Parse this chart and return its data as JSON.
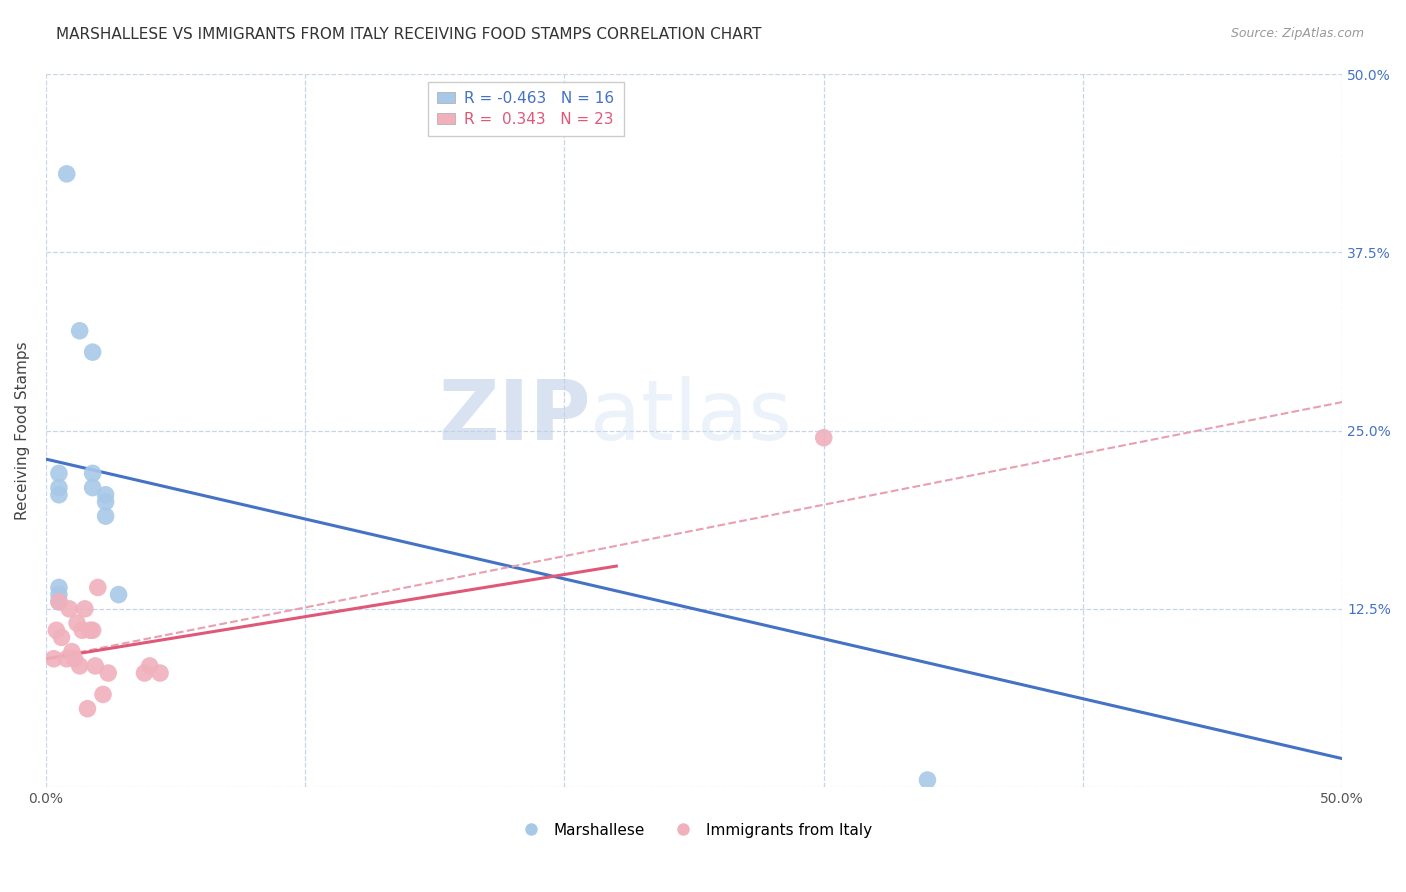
{
  "title": "MARSHALLESE VS IMMIGRANTS FROM ITALY RECEIVING FOOD STAMPS CORRELATION CHART",
  "source": "Source: ZipAtlas.com",
  "ylabel": "Receiving Food Stamps",
  "xlabel": "",
  "xlim": [
    0.0,
    0.5
  ],
  "ylim": [
    0.0,
    0.5
  ],
  "xticks": [
    0.0,
    0.1,
    0.2,
    0.3,
    0.4,
    0.5
  ],
  "yticks": [
    0.0,
    0.125,
    0.25,
    0.375,
    0.5
  ],
  "xtick_labels": [
    "0.0%",
    "",
    "",
    "",
    "",
    "50.0%"
  ],
  "right_ytick_labels": [
    "",
    "12.5%",
    "25.0%",
    "37.5%",
    "50.0%"
  ],
  "blue_R": "-0.463",
  "blue_N": "16",
  "pink_R": "0.343",
  "pink_N": "23",
  "blue_color": "#a8c8e8",
  "pink_color": "#f0b0bc",
  "blue_line_color": "#4472c4",
  "pink_line_color": "#e05878",
  "pink_dashed_color": "#e8a0b0",
  "watermark_zip": "ZIP",
  "watermark_atlas": "atlas",
  "background_color": "#ffffff",
  "grid_color": "#c8d4e8",
  "blue_scatter_x": [
    0.008,
    0.013,
    0.018,
    0.018,
    0.018,
    0.023,
    0.023,
    0.023,
    0.028,
    0.005,
    0.005,
    0.005,
    0.34,
    0.005,
    0.005,
    0.005
  ],
  "blue_scatter_y": [
    0.43,
    0.32,
    0.305,
    0.22,
    0.21,
    0.205,
    0.2,
    0.19,
    0.135,
    0.22,
    0.21,
    0.205,
    0.005,
    0.14,
    0.135,
    0.13
  ],
  "pink_scatter_x": [
    0.003,
    0.004,
    0.005,
    0.006,
    0.008,
    0.009,
    0.01,
    0.011,
    0.012,
    0.013,
    0.014,
    0.015,
    0.016,
    0.017,
    0.018,
    0.019,
    0.02,
    0.022,
    0.024,
    0.038,
    0.04,
    0.044,
    0.3
  ],
  "pink_scatter_y": [
    0.09,
    0.11,
    0.13,
    0.105,
    0.09,
    0.125,
    0.095,
    0.09,
    0.115,
    0.085,
    0.11,
    0.125,
    0.055,
    0.11,
    0.11,
    0.085,
    0.14,
    0.065,
    0.08,
    0.08,
    0.085,
    0.08,
    0.245
  ],
  "blue_line_x": [
    0.0,
    0.5
  ],
  "blue_line_y": [
    0.23,
    0.02
  ],
  "pink_solid_line_x": [
    0.0,
    0.22
  ],
  "pink_solid_line_y": [
    0.09,
    0.155
  ],
  "pink_dashed_line_x": [
    0.0,
    0.5
  ],
  "pink_dashed_line_y": [
    0.09,
    0.27
  ]
}
